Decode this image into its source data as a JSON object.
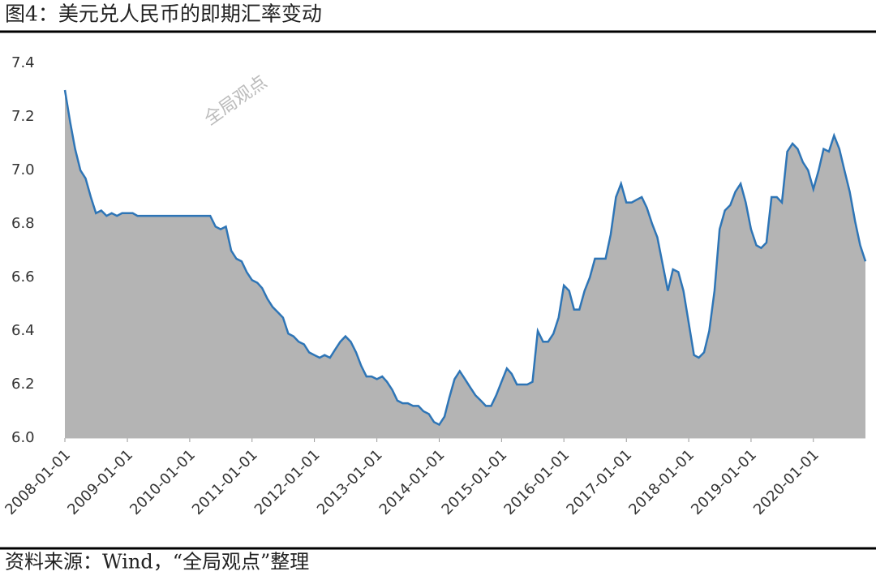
{
  "chart_data": {
    "type": "area",
    "title": "图4：美元兑人民币的即期汇率变动",
    "watermark": "全局观点",
    "source": "资料来源：Wind，“全局观点”整理",
    "x": [
      "2008-01-01",
      "2008-02-01",
      "2008-03-01",
      "2008-04-01",
      "2008-05-01",
      "2008-06-01",
      "2008-07-01",
      "2008-08-01",
      "2008-09-01",
      "2008-10-01",
      "2008-11-01",
      "2008-12-01",
      "2009-01-01",
      "2009-02-01",
      "2009-03-01",
      "2009-04-01",
      "2009-05-01",
      "2009-06-01",
      "2009-07-01",
      "2009-08-01",
      "2009-09-01",
      "2009-10-01",
      "2009-11-01",
      "2009-12-01",
      "2010-01-01",
      "2010-02-01",
      "2010-03-01",
      "2010-04-01",
      "2010-05-01",
      "2010-06-01",
      "2010-07-01",
      "2010-08-01",
      "2010-09-01",
      "2010-10-01",
      "2010-11-01",
      "2010-12-01",
      "2011-01-01",
      "2011-02-01",
      "2011-03-01",
      "2011-04-01",
      "2011-05-01",
      "2011-06-01",
      "2011-07-01",
      "2011-08-01",
      "2011-09-01",
      "2011-10-01",
      "2011-11-01",
      "2011-12-01",
      "2012-01-01",
      "2012-02-01",
      "2012-03-01",
      "2012-04-01",
      "2012-05-01",
      "2012-06-01",
      "2012-07-01",
      "2012-08-01",
      "2012-09-01",
      "2012-10-01",
      "2012-11-01",
      "2012-12-01",
      "2013-01-01",
      "2013-02-01",
      "2013-03-01",
      "2013-04-01",
      "2013-05-01",
      "2013-06-01",
      "2013-07-01",
      "2013-08-01",
      "2013-09-01",
      "2013-10-01",
      "2013-11-01",
      "2013-12-01",
      "2014-01-01",
      "2014-02-01",
      "2014-03-01",
      "2014-04-01",
      "2014-05-01",
      "2014-06-01",
      "2014-07-01",
      "2014-08-01",
      "2014-09-01",
      "2014-10-01",
      "2014-11-01",
      "2014-12-01",
      "2015-01-01",
      "2015-02-01",
      "2015-03-01",
      "2015-04-01",
      "2015-05-01",
      "2015-06-01",
      "2015-07-01",
      "2015-08-01",
      "2015-09-01",
      "2015-10-01",
      "2015-11-01",
      "2015-12-01",
      "2016-01-01",
      "2016-02-01",
      "2016-03-01",
      "2016-04-01",
      "2016-05-01",
      "2016-06-01",
      "2016-07-01",
      "2016-08-01",
      "2016-09-01",
      "2016-10-01",
      "2016-11-01",
      "2016-12-01",
      "2017-01-01",
      "2017-02-01",
      "2017-03-01",
      "2017-04-01",
      "2017-05-01",
      "2017-06-01",
      "2017-07-01",
      "2017-08-01",
      "2017-09-01",
      "2017-10-01",
      "2017-11-01",
      "2017-12-01",
      "2018-01-01",
      "2018-02-01",
      "2018-03-01",
      "2018-04-01",
      "2018-05-01",
      "2018-06-01",
      "2018-07-01",
      "2018-08-01",
      "2018-09-01",
      "2018-10-01",
      "2018-11-01",
      "2018-12-01",
      "2019-01-01",
      "2019-02-01",
      "2019-03-01",
      "2019-04-01",
      "2019-05-01",
      "2019-06-01",
      "2019-07-01",
      "2019-08-01",
      "2019-09-01",
      "2019-10-01",
      "2019-11-01",
      "2019-12-01",
      "2020-01-01",
      "2020-02-01",
      "2020-03-01",
      "2020-04-01",
      "2020-05-01",
      "2020-06-01",
      "2020-07-01",
      "2020-08-01",
      "2020-09-01",
      "2020-10-01",
      "2020-11-01"
    ],
    "series": [
      {
        "color": "#2e75b6",
        "fill": "#b4b4b4",
        "values": [
          7.3,
          7.18,
          7.08,
          7.0,
          6.97,
          6.9,
          6.84,
          6.85,
          6.83,
          6.84,
          6.83,
          6.84,
          6.84,
          6.84,
          6.83,
          6.83,
          6.83,
          6.83,
          6.83,
          6.83,
          6.83,
          6.83,
          6.83,
          6.83,
          6.83,
          6.83,
          6.83,
          6.83,
          6.83,
          6.79,
          6.78,
          6.79,
          6.7,
          6.67,
          6.66,
          6.62,
          6.59,
          6.58,
          6.56,
          6.52,
          6.49,
          6.47,
          6.45,
          6.39,
          6.38,
          6.36,
          6.35,
          6.32,
          6.31,
          6.3,
          6.31,
          6.3,
          6.33,
          6.36,
          6.38,
          6.36,
          6.32,
          6.27,
          6.23,
          6.23,
          6.22,
          6.23,
          6.21,
          6.18,
          6.14,
          6.13,
          6.13,
          6.12,
          6.12,
          6.1,
          6.09,
          6.06,
          6.05,
          6.08,
          6.15,
          6.22,
          6.25,
          6.22,
          6.19,
          6.16,
          6.14,
          6.12,
          6.12,
          6.16,
          6.21,
          6.26,
          6.24,
          6.2,
          6.2,
          6.2,
          6.21,
          6.4,
          6.36,
          6.36,
          6.39,
          6.45,
          6.57,
          6.55,
          6.48,
          6.48,
          6.55,
          6.6,
          6.67,
          6.67,
          6.67,
          6.76,
          6.9,
          6.95,
          6.88,
          6.88,
          6.89,
          6.9,
          6.86,
          6.8,
          6.75,
          6.65,
          6.55,
          6.63,
          6.62,
          6.55,
          6.43,
          6.31,
          6.3,
          6.32,
          6.4,
          6.55,
          6.78,
          6.85,
          6.87,
          6.92,
          6.95,
          6.88,
          6.78,
          6.72,
          6.71,
          6.73,
          6.9,
          6.9,
          6.88,
          7.07,
          7.1,
          7.08,
          7.03,
          7.0,
          6.93,
          7.0,
          7.08,
          7.07,
          7.13,
          7.08,
          7.0,
          6.92,
          6.81,
          6.72,
          6.66
        ]
      }
    ],
    "xlim": [
      "2008-01-01",
      "2020-11-01"
    ],
    "xticks": [
      "2008-01-01",
      "2009-01-01",
      "2010-01-01",
      "2011-01-01",
      "2012-01-01",
      "2013-01-01",
      "2014-01-01",
      "2015-01-01",
      "2016-01-01",
      "2017-01-01",
      "2018-01-01",
      "2019-01-01",
      "2020-01-01"
    ],
    "ylim": [
      6.0,
      7.4
    ],
    "yticks": [
      {
        "value": 6.0,
        "label": "6.0"
      },
      6.2,
      6.4,
      6.6,
      6.8,
      {
        "value": 7.0,
        "label": "7.0"
      },
      7.2,
      7.4
    ]
  }
}
